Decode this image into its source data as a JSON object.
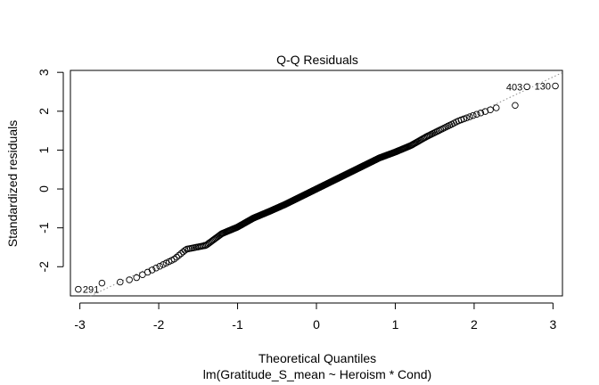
{
  "chart_data": {
    "type": "scatter",
    "title": "Q-Q Residuals",
    "xlabel": "Theoretical Quantiles",
    "ylabel": "Standardized residuals",
    "subtitle": "lm(Gratitude_S_mean ~ Heroism * Cond)",
    "xlim": [
      -3.12,
      3.12
    ],
    "ylim": [
      -2.75,
      3.05
    ],
    "x_ticks": [
      -3,
      -2,
      -1,
      0,
      1,
      2,
      3
    ],
    "y_ticks": [
      -2,
      -1,
      0,
      1,
      2,
      3
    ],
    "x_tick_labels": [
      "-3",
      "-2",
      "-1",
      "0",
      "1",
      "2",
      "3"
    ],
    "y_tick_labels": [
      "-2",
      "-1",
      "0",
      "1",
      "2",
      "3"
    ],
    "reference_line": {
      "intercept": 0.0,
      "slope": 0.96,
      "style": "dotted",
      "color": "#8c8c8c"
    },
    "quantile_curve": {
      "x": [
        -2.6,
        -2.3,
        -2.0,
        -1.8,
        -1.65,
        -1.4,
        -1.2,
        -1.0,
        -0.8,
        -0.6,
        -0.4,
        -0.2,
        0.0,
        0.2,
        0.4,
        0.6,
        0.8,
        1.0,
        1.2,
        1.4,
        1.6,
        1.8,
        2.0,
        2.3
      ],
      "y": [
        -2.45,
        -2.3,
        -2.0,
        -1.8,
        -1.55,
        -1.45,
        -1.15,
        -0.98,
        -0.75,
        -0.58,
        -0.4,
        -0.2,
        0.0,
        0.2,
        0.4,
        0.6,
        0.8,
        0.95,
        1.12,
        1.35,
        1.55,
        1.75,
        1.9,
        2.1
      ]
    },
    "n_points": 410,
    "extreme_points": [
      {
        "x": -3.02,
        "y": -2.58
      },
      {
        "x": -2.72,
        "y": -2.42
      },
      {
        "x": 2.52,
        "y": 2.15
      },
      {
        "x": 2.67,
        "y": 2.63
      },
      {
        "x": 3.03,
        "y": 2.65
      }
    ],
    "point_labels": [
      {
        "label": "291",
        "x": -3.02,
        "y": -2.58,
        "anchor": "right"
      },
      {
        "label": "403",
        "x": 2.67,
        "y": 2.63,
        "anchor": "left"
      },
      {
        "label": "130",
        "x": 3.03,
        "y": 2.65,
        "anchor": "left"
      }
    ]
  }
}
